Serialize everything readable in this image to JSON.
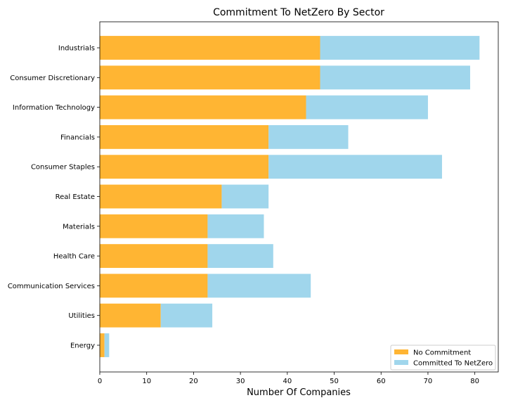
{
  "chart_data": {
    "type": "bar",
    "orientation": "horizontal",
    "stacked": true,
    "title": "Commitment To NetZero By Sector",
    "xlabel": "Number Of Companies",
    "ylabel": "",
    "xlim": [
      0,
      85
    ],
    "xticks": [
      0,
      10,
      20,
      30,
      40,
      50,
      60,
      70,
      80
    ],
    "grid": false,
    "legend_position": "bottom-right",
    "categories": [
      "Industrials",
      "Consumer Discretionary",
      "Information Technology",
      "Financials",
      "Consumer Staples",
      "Real Estate",
      "Materials",
      "Health Care",
      "Communication Services",
      "Utilities",
      "Energy"
    ],
    "series": [
      {
        "name": "No Commitment",
        "color": "#FFB533",
        "values": [
          47,
          47,
          44,
          36,
          36,
          26,
          23,
          23,
          23,
          13,
          1
        ]
      },
      {
        "name": "Committed To NetZero",
        "color": "#A0D6EC",
        "values": [
          34,
          32,
          26,
          17,
          37,
          10,
          12,
          14,
          22,
          11,
          1
        ]
      }
    ]
  }
}
